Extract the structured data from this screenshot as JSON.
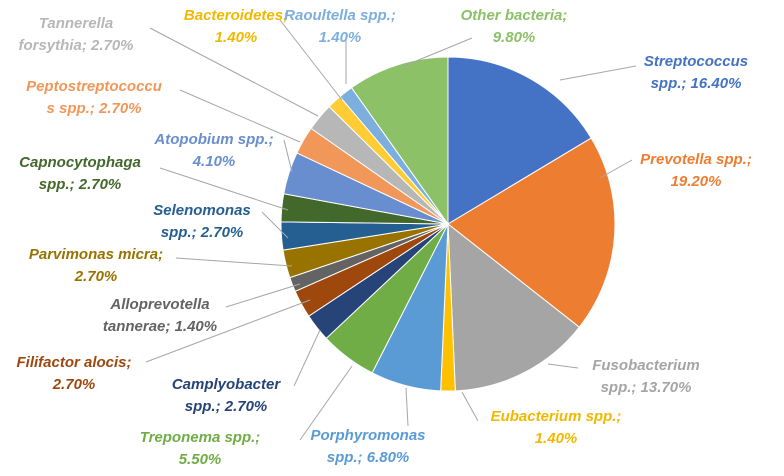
{
  "chart_data": {
    "type": "pie",
    "title": "",
    "slices": [
      {
        "name": "Streptococcus spp.",
        "value": 16.4,
        "label_lines": [
          "Streptococcus",
          "spp.; 16.40%"
        ],
        "color": "#4472C4"
      },
      {
        "name": "Prevotella spp.",
        "value": 19.2,
        "label_lines": [
          "Prevotella spp.;",
          "19.20%"
        ],
        "color": "#ED7D31"
      },
      {
        "name": "Fusobacterium spp.",
        "value": 13.7,
        "label_lines": [
          "Fusobacterium",
          "spp.; 13.70%"
        ],
        "color": "#A5A5A5"
      },
      {
        "name": "Eubacterium spp.",
        "value": 1.4,
        "label_lines": [
          "Eubacterium spp.;",
          "1.40%"
        ],
        "color": "#FFC000"
      },
      {
        "name": "Porphyromonas spp.",
        "value": 6.8,
        "label_lines": [
          "Porphyromonas",
          "spp.; 6.80%"
        ],
        "color": "#5B9BD5"
      },
      {
        "name": "Treponema spp.",
        "value": 5.5,
        "label_lines": [
          "Treponema spp.;",
          "5.50%"
        ],
        "color": "#70AD47"
      },
      {
        "name": "Camplyobacter spp.",
        "value": 2.7,
        "label_lines": [
          "Camplyobacter",
          "spp.; 2.70%"
        ],
        "color": "#264478"
      },
      {
        "name": "Filifactor alocis",
        "value": 2.7,
        "label_lines": [
          "Filifactor alocis;",
          "2.70%"
        ],
        "color": "#9E480E"
      },
      {
        "name": "Alloprevotella tannerae",
        "value": 1.4,
        "label_lines": [
          "Alloprevotella",
          "tannerae; 1.40%"
        ],
        "color": "#636363"
      },
      {
        "name": "Parvimonas micra",
        "value": 2.7,
        "label_lines": [
          "Parvimonas micra;",
          "2.70%"
        ],
        "color": "#997300"
      },
      {
        "name": "Selenomonas spp.",
        "value": 2.7,
        "label_lines": [
          "Selenomonas",
          "spp.; 2.70%"
        ],
        "color": "#255E91"
      },
      {
        "name": "Capnocytophaga spp.",
        "value": 2.7,
        "label_lines": [
          "Capnocytophaga",
          "spp.; 2.70%"
        ],
        "color": "#43682B"
      },
      {
        "name": "Atopobium spp.",
        "value": 4.1,
        "label_lines": [
          "Atopobium spp.;",
          "4.10%"
        ],
        "color": "#698ED0"
      },
      {
        "name": "Peptostreptococcus spp.",
        "value": 2.7,
        "label_lines": [
          "Peptostreptococcu",
          "s spp.; 2.70%"
        ],
        "color": "#F1975A"
      },
      {
        "name": "Tannerella forsythia",
        "value": 2.7,
        "label_lines": [
          "Tannerella",
          "forsythia; 2.70%"
        ],
        "color": "#B7B7B7"
      },
      {
        "name": "Bacteroidetes",
        "value": 1.4,
        "label_lines": [
          "Bacteroidetes;",
          "1.40%"
        ],
        "color": "#FFCD33"
      },
      {
        "name": "Raoultella spp.",
        "value": 1.4,
        "label_lines": [
          "Raoultella spp.;",
          "1.40%"
        ],
        "color": "#7CAFDD"
      },
      {
        "name": "Other bacteria",
        "value": 9.8,
        "label_lines": [
          "Other bacteria;",
          "9.80%"
        ],
        "color": "#8CC168"
      }
    ],
    "legend": "none",
    "data_labels": "outside with leader lines"
  }
}
